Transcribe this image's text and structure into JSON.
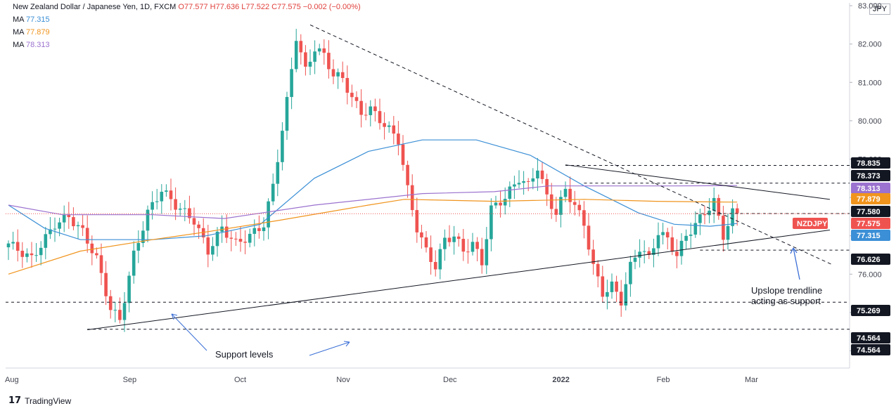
{
  "header": {
    "title": "New Zealand Dollar / Japanese Yen, 1D, FXCM",
    "ohlc": "O77.577  H77.636  L77.522  C77.575  −0.002  (−0.00%)",
    "ma1_label": "MA",
    "ma1_value": "77.315",
    "ma2_label": "MA",
    "ma2_value": "77.879",
    "ma3_label": "MA",
    "ma3_value": "78.313"
  },
  "currency": "JPY",
  "logo_text": "TradingView",
  "colors": {
    "up": "#26a69a",
    "down": "#ef5350",
    "ma1": "#3b8fd6",
    "ma2": "#f0941d",
    "ma3": "#9b72cf"
  },
  "chart_data": {
    "type": "candlestick",
    "symbol": "NZDJPY",
    "ylim": [
      73.8,
      83.1
    ],
    "y_ticks": [
      "74.000",
      "75.000",
      "76.000",
      "77.000",
      "78.000",
      "79.000",
      "80.000",
      "81.000",
      "82.000",
      "83.000"
    ],
    "x_ticks": [
      "Aug",
      "Sep",
      "Oct",
      "Nov",
      "Dec",
      "2022",
      "Feb",
      "Mar"
    ],
    "price_tags": [
      {
        "label": "78.835",
        "color": "#131722"
      },
      {
        "label": "78.373",
        "color": "#131722"
      },
      {
        "label": "78.313",
        "color": "#9b72cf"
      },
      {
        "label": "77.879",
        "color": "#f0941d"
      },
      {
        "label": "77.580",
        "color": "#131722"
      },
      {
        "label": "NZDJPY",
        "color": "#ef5350"
      },
      {
        "label": "77.575",
        "color": "#ef5350"
      },
      {
        "label": "77.315",
        "color": "#3b8fd6"
      },
      {
        "label": "76.626",
        "color": "#131722"
      },
      {
        "label": "75.269",
        "color": "#131722"
      },
      {
        "label": "74.564",
        "color": "#131722"
      },
      {
        "label": "74.564",
        "color": "#131722"
      }
    ],
    "ma_series": [
      {
        "name": "MA",
        "color": "#3b8fd6",
        "points": [
          [
            0,
            77.8
          ],
          [
            20,
            77.2
          ],
          [
            40,
            76.9
          ],
          [
            80,
            76.9
          ],
          [
            110,
            77.0
          ],
          [
            140,
            77.3
          ],
          [
            170,
            78.5
          ],
          [
            200,
            79.2
          ],
          [
            230,
            79.5
          ],
          [
            260,
            79.5
          ],
          [
            290,
            79.1
          ],
          [
            320,
            78.3
          ],
          [
            350,
            77.6
          ],
          [
            370,
            77.3
          ],
          [
            390,
            77.25
          ],
          [
            405,
            77.32
          ]
        ]
      },
      {
        "name": "MA",
        "color": "#f0941d",
        "points": [
          [
            0,
            76.0
          ],
          [
            40,
            76.6
          ],
          [
            80,
            76.9
          ],
          [
            110,
            77.1
          ],
          [
            150,
            77.4
          ],
          [
            200,
            77.8
          ],
          [
            220,
            77.95
          ],
          [
            270,
            77.9
          ],
          [
            320,
            77.95
          ],
          [
            360,
            77.9
          ],
          [
            400,
            77.88
          ],
          [
            405,
            77.88
          ]
        ]
      },
      {
        "name": "MA",
        "color": "#9b72cf",
        "points": [
          [
            0,
            77.8
          ],
          [
            30,
            77.55
          ],
          [
            80,
            77.55
          ],
          [
            120,
            77.45
          ],
          [
            170,
            77.8
          ],
          [
            230,
            78.1
          ],
          [
            270,
            78.15
          ],
          [
            300,
            78.3
          ],
          [
            340,
            78.3
          ],
          [
            370,
            78.3
          ],
          [
            405,
            78.31
          ]
        ]
      }
    ],
    "h_levels": [
      78.835,
      78.373,
      77.58,
      76.626,
      75.269,
      74.564
    ],
    "trendlines": [
      {
        "from": [
          157,
          82.5
        ],
        "to": [
          432,
          76.25
        ],
        "style": "dashed"
      },
      {
        "from": [
          43,
          74.55
        ],
        "to": [
          432,
          77.15
        ],
        "style": "solid"
      },
      {
        "from": [
          301,
          78.85
        ],
        "to": [
          432,
          77.95
        ],
        "style": "solid"
      }
    ],
    "annotations": [
      {
        "text": "Support levels",
        "at": [
          110,
          74.9
        ]
      },
      {
        "text": "Upslope trendline",
        "at": [
          406,
          75.85
        ]
      },
      {
        "text": "acting as support",
        "at": [
          406,
          75.5
        ]
      }
    ]
  }
}
